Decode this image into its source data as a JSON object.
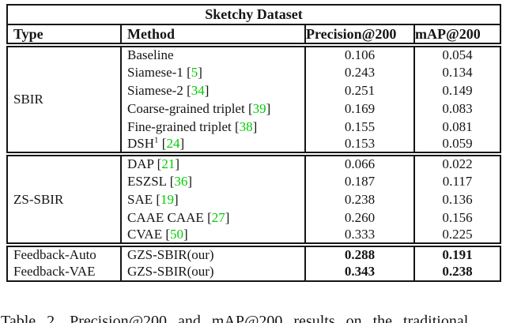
{
  "table": {
    "title": "Sketchy Dataset",
    "columns": [
      "Type",
      "Method",
      "Precision@200",
      "mAP@200"
    ],
    "groups": [
      {
        "label": "SBIR",
        "rows": [
          {
            "method": "Baseline",
            "sup": "",
            "cite": "",
            "precision": "0.106",
            "map": "0.054",
            "bold": false
          },
          {
            "method": "Siamese-1",
            "sup": "",
            "cite": "5",
            "precision": "0.243",
            "map": "0.134",
            "bold": false
          },
          {
            "method": "Siamese-2",
            "sup": "",
            "cite": "34",
            "precision": "0.251",
            "map": "0.149",
            "bold": false
          },
          {
            "method": "Coarse-grained triplet",
            "sup": "",
            "cite": "39",
            "precision": "0.169",
            "map": "0.083",
            "bold": false
          },
          {
            "method": "Fine-grained triplet",
            "sup": "",
            "cite": "38",
            "precision": "0.155",
            "map": "0.081",
            "bold": false
          },
          {
            "method": "DSH",
            "sup": "1",
            "cite": "24",
            "precision": "0.153",
            "map": "0.059",
            "bold": false
          }
        ]
      },
      {
        "label": "ZS-SBIR",
        "rows": [
          {
            "method": "DAP",
            "sup": "",
            "cite": "21",
            "precision": "0.066",
            "map": "0.022",
            "bold": false
          },
          {
            "method": "ESZSL",
            "sup": "",
            "cite": "36",
            "precision": "0.187",
            "map": "0.117",
            "bold": false
          },
          {
            "method": "SAE",
            "sup": "",
            "cite": "19",
            "precision": "0.238",
            "map": "0.136",
            "bold": false
          },
          {
            "method": "CAAE CAAE",
            "sup": "",
            "cite": "27",
            "precision": "0.260",
            "map": "0.156",
            "bold": false
          },
          {
            "method": "CVAE",
            "sup": "",
            "cite": "50",
            "precision": "0.333",
            "map": "0.225",
            "bold": false
          }
        ]
      },
      {
        "label": "",
        "rows": [
          {
            "type": "Feedback-Auto",
            "method": "GZS-SBIR(our)",
            "sup": "",
            "cite": "",
            "precision": "0.288",
            "map": "0.191",
            "bold": true
          },
          {
            "type": "Feedback-VAE",
            "method": "GZS-SBIR(our)",
            "sup": "",
            "cite": "",
            "precision": "0.343",
            "map": "0.238",
            "bold": true
          }
        ]
      }
    ]
  },
  "caption": "Table 2. Precision@200 and mAP@200 results on the traditional",
  "colors": {
    "citation_green": "#00CC00",
    "text": "#151515",
    "border": "#151515"
  }
}
